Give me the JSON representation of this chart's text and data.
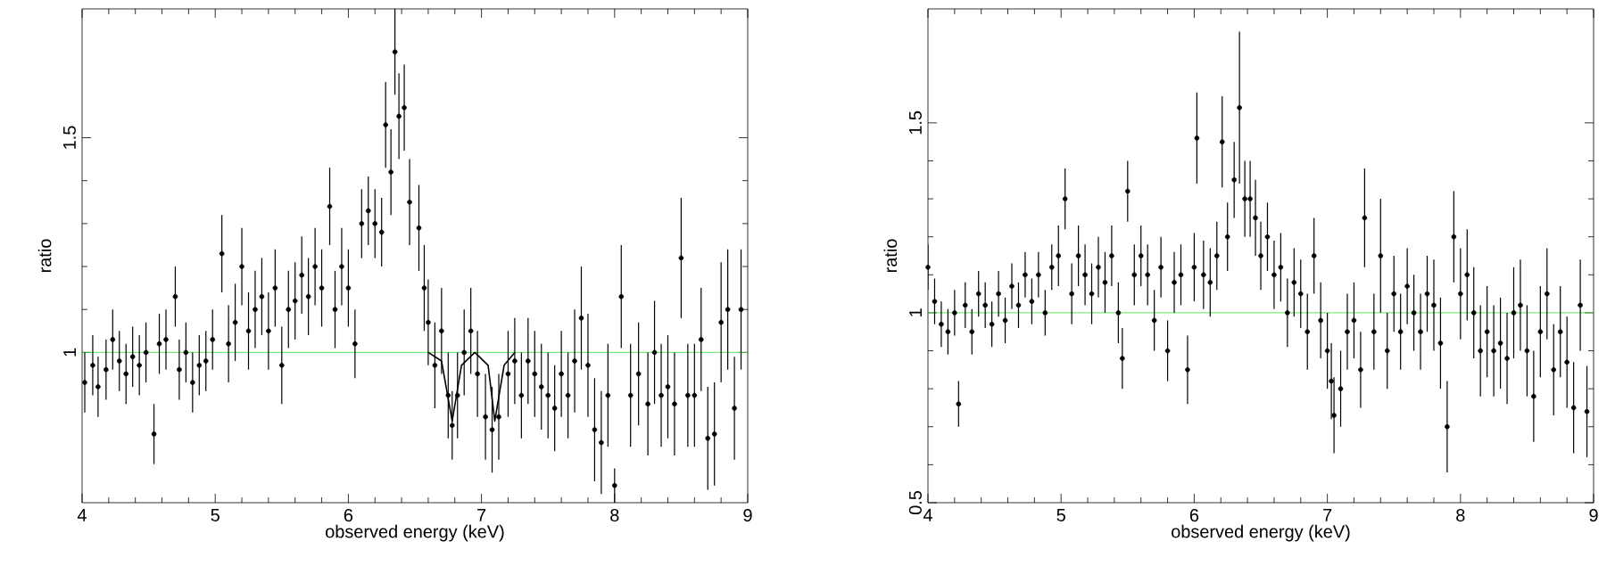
{
  "chart_data": [
    {
      "type": "scatter",
      "xlabel": "observed energy (keV)",
      "ylabel": "ratio",
      "xlim": [
        4,
        9
      ],
      "ylim": [
        0.65,
        1.8
      ],
      "xticks": [
        4,
        5,
        6,
        7,
        8,
        9
      ],
      "yticks": [
        1,
        1.5
      ],
      "marker": "none",
      "ref_lines": [
        {
          "axis": "y",
          "value": 1,
          "color": "#33dd33"
        }
      ],
      "series": [
        {
          "color": "#000000",
          "x": [
            4.02,
            4.08,
            4.12,
            4.18,
            4.23,
            4.28,
            4.33,
            4.38,
            4.43,
            4.48,
            4.54,
            4.58,
            4.63,
            4.7,
            4.73,
            4.78,
            4.83,
            4.88,
            4.93,
            4.98,
            5.05,
            5.1,
            5.15,
            5.2,
            5.25,
            5.3,
            5.35,
            5.4,
            5.45,
            5.5,
            5.55,
            5.6,
            5.65,
            5.7,
            5.75,
            5.8,
            5.86,
            5.9,
            5.95,
            6.0,
            6.05,
            6.1,
            6.15,
            6.2,
            6.25,
            6.28,
            6.32,
            6.35,
            6.38,
            6.42,
            6.46,
            6.53,
            6.57,
            6.6,
            6.65,
            6.7,
            6.75,
            6.78,
            6.82,
            6.87,
            6.92,
            6.97,
            7.03,
            7.08,
            7.13,
            7.2,
            7.25,
            7.3,
            7.35,
            7.4,
            7.45,
            7.5,
            7.55,
            7.6,
            7.65,
            7.7,
            7.75,
            7.8,
            7.85,
            7.9,
            7.95,
            8.0,
            8.05,
            8.12,
            8.18,
            8.25,
            8.3,
            8.35,
            8.4,
            8.45,
            8.5,
            8.55,
            8.6,
            8.65,
            8.7,
            8.75,
            8.8,
            8.85,
            8.9,
            8.95
          ],
          "values": [
            0.93,
            0.97,
            0.92,
            0.96,
            1.03,
            0.98,
            0.95,
            0.99,
            0.97,
            1.0,
            0.81,
            1.02,
            1.03,
            1.13,
            0.96,
            1.0,
            0.93,
            0.97,
            0.98,
            1.03,
            1.23,
            1.02,
            1.07,
            1.2,
            1.05,
            1.1,
            1.13,
            1.05,
            1.15,
            0.97,
            1.1,
            1.12,
            1.18,
            1.13,
            1.2,
            1.15,
            1.34,
            1.1,
            1.2,
            1.15,
            1.02,
            1.3,
            1.33,
            1.3,
            1.28,
            1.53,
            1.42,
            1.7,
            1.55,
            1.57,
            1.35,
            1.29,
            1.15,
            1.07,
            0.97,
            1.05,
            0.9,
            0.83,
            0.9,
            1.0,
            1.05,
            0.95,
            0.85,
            0.82,
            0.85,
            0.95,
            0.98,
            0.9,
            0.98,
            0.95,
            0.92,
            0.9,
            0.87,
            0.95,
            0.9,
            0.98,
            1.08,
            0.97,
            0.82,
            0.79,
            0.9,
            0.69,
            1.13,
            0.9,
            0.95,
            0.88,
            1.0,
            0.9,
            0.92,
            0.88,
            1.22,
            0.9,
            0.9,
            1.03,
            0.8,
            0.81,
            1.07,
            1.1,
            0.87,
            1.1
          ],
          "errors": [
            0.07,
            0.07,
            0.07,
            0.07,
            0.07,
            0.07,
            0.07,
            0.07,
            0.07,
            0.07,
            0.07,
            0.07,
            0.07,
            0.07,
            0.07,
            0.07,
            0.07,
            0.07,
            0.07,
            0.07,
            0.09,
            0.09,
            0.09,
            0.09,
            0.09,
            0.09,
            0.09,
            0.09,
            0.09,
            0.09,
            0.09,
            0.09,
            0.09,
            0.09,
            0.09,
            0.09,
            0.09,
            0.09,
            0.09,
            0.09,
            0.08,
            0.08,
            0.08,
            0.08,
            0.08,
            0.1,
            0.1,
            0.1,
            0.1,
            0.1,
            0.1,
            0.1,
            0.1,
            0.1,
            0.1,
            0.1,
            0.1,
            0.08,
            0.1,
            0.1,
            0.1,
            0.1,
            0.1,
            0.1,
            0.1,
            0.1,
            0.1,
            0.1,
            0.1,
            0.1,
            0.1,
            0.1,
            0.1,
            0.1,
            0.1,
            0.12,
            0.12,
            0.12,
            0.12,
            0.12,
            0.12,
            0.04,
            0.12,
            0.12,
            0.12,
            0.12,
            0.12,
            0.12,
            0.12,
            0.12,
            0.14,
            0.12,
            0.12,
            0.12,
            0.12,
            0.12,
            0.14,
            0.14,
            0.12,
            0.14
          ]
        },
        {
          "type": "line",
          "color": "#000000",
          "x": [
            6.6,
            6.7,
            6.78,
            6.85,
            6.95,
            7.05,
            7.1,
            7.17,
            7.25
          ],
          "values": [
            1.0,
            0.98,
            0.84,
            0.97,
            1.0,
            0.97,
            0.84,
            0.97,
            1.0
          ]
        }
      ]
    },
    {
      "type": "scatter",
      "xlabel": "observed energy (keV)",
      "ylabel": "ratio",
      "xlim": [
        4,
        9
      ],
      "ylim": [
        0.5,
        1.8
      ],
      "xticks": [
        4,
        5,
        6,
        7,
        8,
        9
      ],
      "yticks": [
        0.5,
        1,
        1.5
      ],
      "marker": "none",
      "ref_lines": [
        {
          "axis": "y",
          "value": 1,
          "color": "#33dd33"
        }
      ],
      "series": [
        {
          "color": "#000000",
          "x": [
            4.0,
            4.05,
            4.1,
            4.15,
            4.2,
            4.23,
            4.28,
            4.33,
            4.38,
            4.43,
            4.48,
            4.53,
            4.58,
            4.63,
            4.68,
            4.73,
            4.78,
            4.83,
            4.88,
            4.93,
            4.98,
            5.03,
            5.08,
            5.13,
            5.18,
            5.23,
            5.28,
            5.33,
            5.38,
            5.43,
            5.46,
            5.5,
            5.55,
            5.6,
            5.65,
            5.7,
            5.75,
            5.8,
            5.85,
            5.9,
            5.95,
            6.0,
            6.02,
            6.07,
            6.12,
            6.17,
            6.21,
            6.25,
            6.3,
            6.34,
            6.38,
            6.42,
            6.46,
            6.5,
            6.55,
            6.6,
            6.65,
            6.7,
            6.75,
            6.8,
            6.85,
            6.9,
            6.95,
            7.0,
            7.03,
            7.05,
            7.1,
            7.15,
            7.2,
            7.25,
            7.28,
            7.35,
            7.4,
            7.45,
            7.5,
            7.55,
            7.6,
            7.65,
            7.7,
            7.75,
            7.8,
            7.85,
            7.9,
            7.95,
            8.0,
            8.05,
            8.1,
            8.15,
            8.2,
            8.25,
            8.3,
            8.35,
            8.4,
            8.45,
            8.5,
            8.55,
            8.6,
            8.65,
            8.7,
            8.75,
            8.8,
            8.85,
            8.9,
            8.95
          ],
          "values": [
            1.12,
            1.03,
            0.97,
            0.95,
            1.0,
            0.76,
            1.02,
            0.95,
            1.05,
            1.02,
            0.97,
            1.05,
            0.98,
            1.07,
            1.02,
            1.1,
            1.03,
            1.1,
            1.0,
            1.12,
            1.15,
            1.3,
            1.05,
            1.15,
            1.1,
            1.05,
            1.12,
            1.08,
            1.15,
            1.0,
            0.88,
            1.32,
            1.1,
            1.15,
            1.1,
            0.98,
            1.12,
            0.9,
            1.08,
            1.1,
            0.85,
            1.12,
            1.46,
            1.1,
            1.08,
            1.15,
            1.45,
            1.2,
            1.35,
            1.54,
            1.3,
            1.3,
            1.25,
            1.15,
            1.2,
            1.1,
            1.12,
            1.0,
            1.08,
            1.05,
            0.95,
            1.15,
            0.98,
            0.9,
            0.82,
            0.73,
            0.8,
            0.95,
            0.98,
            0.85,
            1.25,
            0.95,
            1.15,
            0.9,
            1.05,
            0.95,
            1.07,
            1.0,
            0.95,
            1.05,
            1.02,
            0.92,
            0.7,
            1.2,
            1.05,
            1.1,
            1.0,
            0.9,
            0.95,
            0.9,
            0.92,
            0.88,
            1.0,
            1.02,
            0.9,
            0.78,
            0.95,
            1.05,
            0.85,
            0.95,
            0.87,
            0.75,
            1.02,
            0.74
          ],
          "errors": [
            0.06,
            0.06,
            0.06,
            0.06,
            0.06,
            0.06,
            0.06,
            0.06,
            0.06,
            0.06,
            0.06,
            0.06,
            0.06,
            0.06,
            0.06,
            0.06,
            0.06,
            0.06,
            0.06,
            0.06,
            0.08,
            0.08,
            0.08,
            0.08,
            0.08,
            0.08,
            0.08,
            0.08,
            0.08,
            0.08,
            0.08,
            0.08,
            0.08,
            0.08,
            0.08,
            0.08,
            0.08,
            0.08,
            0.08,
            0.08,
            0.09,
            0.09,
            0.12,
            0.09,
            0.09,
            0.09,
            0.12,
            0.09,
            0.1,
            0.2,
            0.1,
            0.1,
            0.1,
            0.09,
            0.09,
            0.09,
            0.09,
            0.09,
            0.09,
            0.09,
            0.1,
            0.1,
            0.1,
            0.1,
            0.1,
            0.1,
            0.1,
            0.1,
            0.1,
            0.1,
            0.13,
            0.1,
            0.15,
            0.1,
            0.1,
            0.1,
            0.1,
            0.1,
            0.1,
            0.1,
            0.12,
            0.12,
            0.12,
            0.12,
            0.12,
            0.12,
            0.12,
            0.12,
            0.12,
            0.12,
            0.12,
            0.12,
            0.12,
            0.12,
            0.12,
            0.12,
            0.12,
            0.12,
            0.12,
            0.12,
            0.12,
            0.12,
            0.12,
            0.12
          ]
        }
      ]
    }
  ]
}
